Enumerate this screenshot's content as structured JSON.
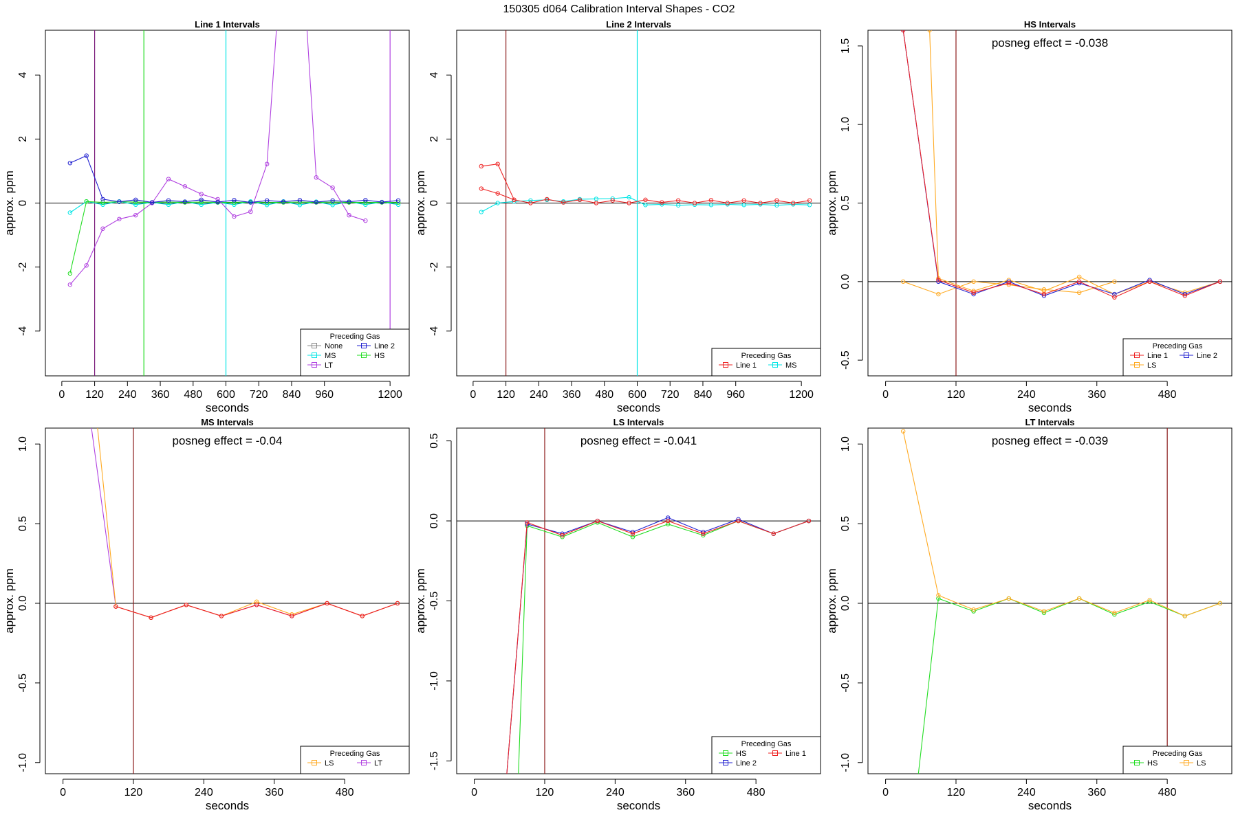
{
  "figure_title": "150305  d064   Calibration Interval Shapes - CO2",
  "xlabel": "seconds",
  "ylabel": "approx. ppm",
  "legend_title": "Preceding Gas",
  "colors": {
    "None": "#888888",
    "MS": "#00e5e5",
    "LT": "#b040e0",
    "Line 2": "#2020d0",
    "HS": "#22dd22",
    "Line 1": "#ee2222",
    "LS": "#ffaa22",
    "marker_line": "#8b1a1a",
    "zero_line": "#000000"
  },
  "chart_data": [
    {
      "type": "line",
      "title": "Line 1 Intervals",
      "xlim": [
        -60,
        1270
      ],
      "ylim": [
        -5.4,
        5.4
      ],
      "xticks": [
        0,
        120,
        240,
        360,
        480,
        600,
        720,
        840,
        960,
        1200
      ],
      "yticks": [
        -4,
        -2,
        0,
        2,
        4
      ],
      "vlines": [
        {
          "x": 120,
          "color": "#7a1a7a"
        },
        {
          "x": 300,
          "color": "#22dd22"
        },
        {
          "x": 600,
          "color": "#00e5e5"
        },
        {
          "x": 1200,
          "color": "#b040e0"
        }
      ],
      "legend": {
        "title": "Preceding Gas",
        "items": [
          "None",
          "MS",
          "LT",
          "Line 2",
          "HS"
        ],
        "columns": [
          [
            "None",
            "MS",
            "LT"
          ],
          [
            "Line 2",
            "HS"
          ]
        ],
        "position": "bottom-right"
      },
      "series": [
        {
          "name": "MS",
          "x": [
            30,
            90,
            150,
            210,
            270,
            330,
            390,
            450,
            510,
            570,
            630,
            690,
            750,
            810,
            870,
            930,
            990,
            1050,
            1110,
            1170,
            1230
          ],
          "y": [
            -0.3,
            0.05,
            -0.05,
            0.05,
            -0.05,
            0.02,
            -0.05,
            0.04,
            -0.05,
            0.02,
            -0.05,
            0.05,
            -0.06,
            0.05,
            -0.06,
            0.04,
            -0.06,
            0.04,
            -0.05,
            0.03,
            -0.05
          ]
        },
        {
          "name": "HS",
          "x": [
            30,
            90,
            150,
            210,
            270,
            330,
            390,
            450,
            510,
            570,
            630,
            690,
            750,
            810,
            870,
            930,
            990,
            1050,
            1110,
            1170,
            1230
          ],
          "y": [
            -2.2,
            0.05,
            0.02,
            0.04,
            0.03,
            0.02,
            0.03,
            0.02,
            0.03,
            0.02,
            0.02,
            0.03,
            0.02,
            0.02,
            0.03,
            0.02,
            0.03,
            0.02,
            0.02,
            0.02,
            0.02
          ]
        },
        {
          "name": "LT",
          "x": [
            30,
            90,
            150,
            210,
            270,
            330,
            390,
            450,
            510,
            570,
            630,
            690,
            750,
            810,
            870,
            930,
            990,
            1050,
            1110
          ],
          "y": [
            -2.55,
            -1.95,
            -0.8,
            -0.5,
            -0.38,
            0.0,
            0.75,
            0.52,
            0.28,
            0.12,
            -0.42,
            -0.27,
            1.22,
            8.5,
            9.0,
            0.8,
            0.48,
            -0.38,
            -0.55
          ]
        },
        {
          "name": "Line 2",
          "x": [
            30,
            90,
            150,
            210,
            270,
            330,
            390,
            450,
            510,
            570,
            630,
            690,
            750,
            810,
            870,
            930,
            990,
            1050,
            1110,
            1170,
            1230
          ],
          "y": [
            1.25,
            1.48,
            0.12,
            0.04,
            0.1,
            0.02,
            0.08,
            0.04,
            0.1,
            0.03,
            0.09,
            0.02,
            0.08,
            0.04,
            0.09,
            0.03,
            0.08,
            0.04,
            0.09,
            0.03,
            0.08
          ]
        }
      ]
    },
    {
      "type": "line",
      "title": "Line 2 Intervals",
      "xlim": [
        -60,
        1270
      ],
      "ylim": [
        -5.4,
        5.4
      ],
      "xticks": [
        0,
        120,
        240,
        360,
        480,
        600,
        720,
        840,
        960,
        1200
      ],
      "yticks": [
        -4,
        -2,
        0,
        2,
        4
      ],
      "vlines": [
        {
          "x": 120,
          "color": "#8b1a1a"
        },
        {
          "x": 600,
          "color": "#00e5e5"
        }
      ],
      "legend": {
        "title": "Preceding Gas",
        "items": [
          "Line 1",
          "MS"
        ],
        "columns": [
          [
            "Line 1"
          ],
          [
            "MS"
          ]
        ],
        "position": "bottom-right"
      },
      "series": [
        {
          "name": "MS",
          "x": [
            30,
            90,
            150,
            210,
            270,
            330,
            390,
            450,
            510,
            570,
            630,
            690,
            750,
            810,
            870,
            930,
            990,
            1050,
            1110,
            1170,
            1230
          ],
          "y": [
            -0.28,
            0.0,
            0.05,
            0.08,
            0.1,
            0.05,
            0.12,
            0.13,
            0.14,
            0.18,
            -0.06,
            -0.04,
            -0.07,
            -0.05,
            -0.06,
            -0.04,
            -0.06,
            -0.04,
            -0.07,
            -0.04,
            -0.06
          ]
        },
        {
          "name": "Line 1",
          "x": [
            30,
            90,
            150,
            210,
            270,
            330,
            390,
            450,
            510,
            570,
            630,
            690,
            750,
            810,
            870,
            930,
            990,
            1050,
            1110,
            1170,
            1230
          ],
          "y": [
            1.15,
            1.22,
            0.1,
            0.0,
            0.12,
            0.02,
            0.1,
            0.0,
            0.08,
            0.0,
            0.1,
            0.02,
            0.08,
            0.0,
            0.09,
            0.0,
            0.08,
            0.0,
            0.08,
            0.0,
            0.08
          ]
        },
        {
          "name": "Line 1",
          "x": [
            30,
            90,
            150
          ],
          "y": [
            0.45,
            0.3,
            0.1
          ]
        }
      ]
    },
    {
      "type": "line",
      "title": "HS Intervals",
      "annotation": "posneg effect = -0.038",
      "xlim": [
        -30,
        590
      ],
      "ylim": [
        -0.6,
        1.6
      ],
      "xticks": [
        0,
        120,
        240,
        360,
        480
      ],
      "yticks": [
        -0.5,
        0.0,
        0.5,
        1.0,
        1.5
      ],
      "vlines": [
        {
          "x": 120,
          "color": "#8b1a1a"
        }
      ],
      "legend": {
        "title": "Preceding Gas",
        "items": [
          "Line 1",
          "LS",
          "Line 2"
        ],
        "columns": [
          [
            "Line 1",
            "LS"
          ],
          [
            "Line 2"
          ]
        ],
        "position": "bottom-right"
      },
      "series": [
        {
          "name": "LS",
          "x": [
            30,
            90,
            150,
            210,
            270,
            330,
            390
          ],
          "y": [
            0.0,
            -0.08,
            0.0,
            -0.02,
            -0.05,
            -0.07,
            0.0
          ]
        },
        {
          "name": "LS",
          "x": [
            75,
            90,
            150,
            210,
            270,
            330,
            390,
            450,
            510,
            570
          ],
          "y": [
            1.6,
            0.02,
            -0.06,
            0.01,
            -0.06,
            0.03,
            -0.08,
            0.0,
            -0.07,
            0.0
          ]
        },
        {
          "name": "Line 2",
          "x": [
            30,
            90,
            150,
            210,
            270,
            330,
            390,
            450,
            510,
            570
          ],
          "y": [
            1.6,
            0.0,
            -0.08,
            0.0,
            -0.09,
            -0.01,
            -0.08,
            0.01,
            -0.08,
            0.0
          ]
        },
        {
          "name": "Line 1",
          "x": [
            30,
            90,
            150,
            210,
            270,
            330,
            390,
            450,
            510,
            570
          ],
          "y": [
            1.6,
            0.01,
            -0.07,
            -0.01,
            -0.08,
            0.0,
            -0.1,
            0.0,
            -0.09,
            0.0
          ]
        }
      ]
    },
    {
      "type": "line",
      "title": "MS Intervals",
      "annotation": "posneg effect = -0.04",
      "xlim": [
        -30,
        590
      ],
      "ylim": [
        -1.07,
        1.1
      ],
      "xticks": [
        0,
        120,
        240,
        360,
        480
      ],
      "yticks": [
        -1.0,
        -0.5,
        0.0,
        0.5,
        1.0
      ],
      "vlines": [
        {
          "x": 120,
          "color": "#8b1a1a"
        }
      ],
      "legend": {
        "title": "Preceding Gas",
        "items": [
          "LS",
          "LT"
        ],
        "columns": [
          [
            "LS"
          ],
          [
            "LT"
          ]
        ],
        "position": "bottom-right"
      },
      "series": [
        {
          "name": "LT",
          "x": [
            30,
            90,
            150,
            210,
            270,
            330,
            390,
            450,
            510,
            570
          ],
          "y": [
            1.6,
            -0.02,
            -0.09,
            -0.01,
            -0.08,
            -0.01,
            -0.08,
            0.0,
            -0.08,
            0.0
          ]
        },
        {
          "name": "LS",
          "x": [
            45,
            90,
            150,
            210,
            270,
            330,
            390,
            450,
            510,
            570
          ],
          "y": [
            1.6,
            -0.02,
            -0.09,
            -0.01,
            -0.08,
            0.01,
            -0.07,
            0.0,
            -0.08,
            0.0
          ]
        },
        {
          "name": "Line 1",
          "x": [
            90,
            150,
            210,
            270,
            330,
            390,
            450,
            510,
            570
          ],
          "y": [
            -0.02,
            -0.09,
            -0.01,
            -0.08,
            -0.01,
            -0.08,
            0.0,
            -0.08,
            0.0
          ]
        }
      ]
    },
    {
      "type": "line",
      "title": "LS Intervals",
      "annotation": "posneg effect = -0.041",
      "xlim": [
        -30,
        590
      ],
      "ylim": [
        -1.58,
        0.58
      ],
      "xticks": [
        0,
        120,
        240,
        360,
        480
      ],
      "yticks": [
        -1.5,
        -1.0,
        -0.5,
        0.0,
        0.5
      ],
      "vlines": [
        {
          "x": 120,
          "color": "#8b1a1a"
        }
      ],
      "legend": {
        "title": "Preceding Gas",
        "items": [
          "HS",
          "Line 2",
          "Line 1"
        ],
        "columns": [
          [
            "HS",
            "Line 2"
          ],
          [
            "Line 1"
          ]
        ],
        "position": "bottom-right"
      },
      "series": [
        {
          "name": "HS",
          "x": [
            75,
            90,
            150,
            210,
            270,
            330,
            390,
            450,
            510,
            570
          ],
          "y": [
            -1.6,
            -0.03,
            -0.1,
            -0.01,
            -0.1,
            -0.02,
            -0.09,
            0.0,
            -0.08,
            0.0
          ]
        },
        {
          "name": "Line 2",
          "x": [
            55,
            90,
            150,
            210,
            270,
            330,
            390,
            450,
            510,
            570
          ],
          "y": [
            -1.6,
            -0.02,
            -0.08,
            0.0,
            -0.07,
            0.02,
            -0.07,
            0.01,
            -0.08,
            0.0
          ]
        },
        {
          "name": "Line 1",
          "x": [
            55,
            90,
            150,
            210,
            270,
            330,
            390,
            450,
            510,
            570
          ],
          "y": [
            -1.6,
            -0.01,
            -0.09,
            0.0,
            -0.08,
            0.0,
            -0.08,
            0.0,
            -0.08,
            0.0
          ]
        }
      ]
    },
    {
      "type": "line",
      "title": "LT Intervals",
      "annotation": "posneg effect = -0.039",
      "xlim": [
        -30,
        590
      ],
      "ylim": [
        -1.07,
        1.1
      ],
      "xticks": [
        0,
        120,
        240,
        360,
        480
      ],
      "yticks": [
        -1.0,
        -0.5,
        0.0,
        0.5,
        1.0
      ],
      "vlines": [
        {
          "x": 480,
          "color": "#8b1a1a"
        }
      ],
      "legend": {
        "title": "Preceding Gas",
        "items": [
          "HS",
          "LS"
        ],
        "columns": [
          [
            "HS"
          ],
          [
            "LS"
          ]
        ],
        "position": "bottom-right"
      },
      "series": [
        {
          "name": "HS",
          "x": [
            55,
            90,
            150,
            210,
            270,
            330,
            390,
            450,
            510,
            570
          ],
          "y": [
            -1.1,
            0.03,
            -0.05,
            0.03,
            -0.06,
            0.03,
            -0.07,
            0.01,
            -0.08,
            0.0
          ]
        },
        {
          "name": "LS",
          "x": [
            30,
            90,
            150,
            210,
            270,
            330,
            390,
            450,
            510,
            570
          ],
          "y": [
            1.08,
            0.05,
            -0.04,
            0.03,
            -0.05,
            0.03,
            -0.06,
            0.02,
            -0.08,
            0.0
          ]
        }
      ]
    }
  ]
}
